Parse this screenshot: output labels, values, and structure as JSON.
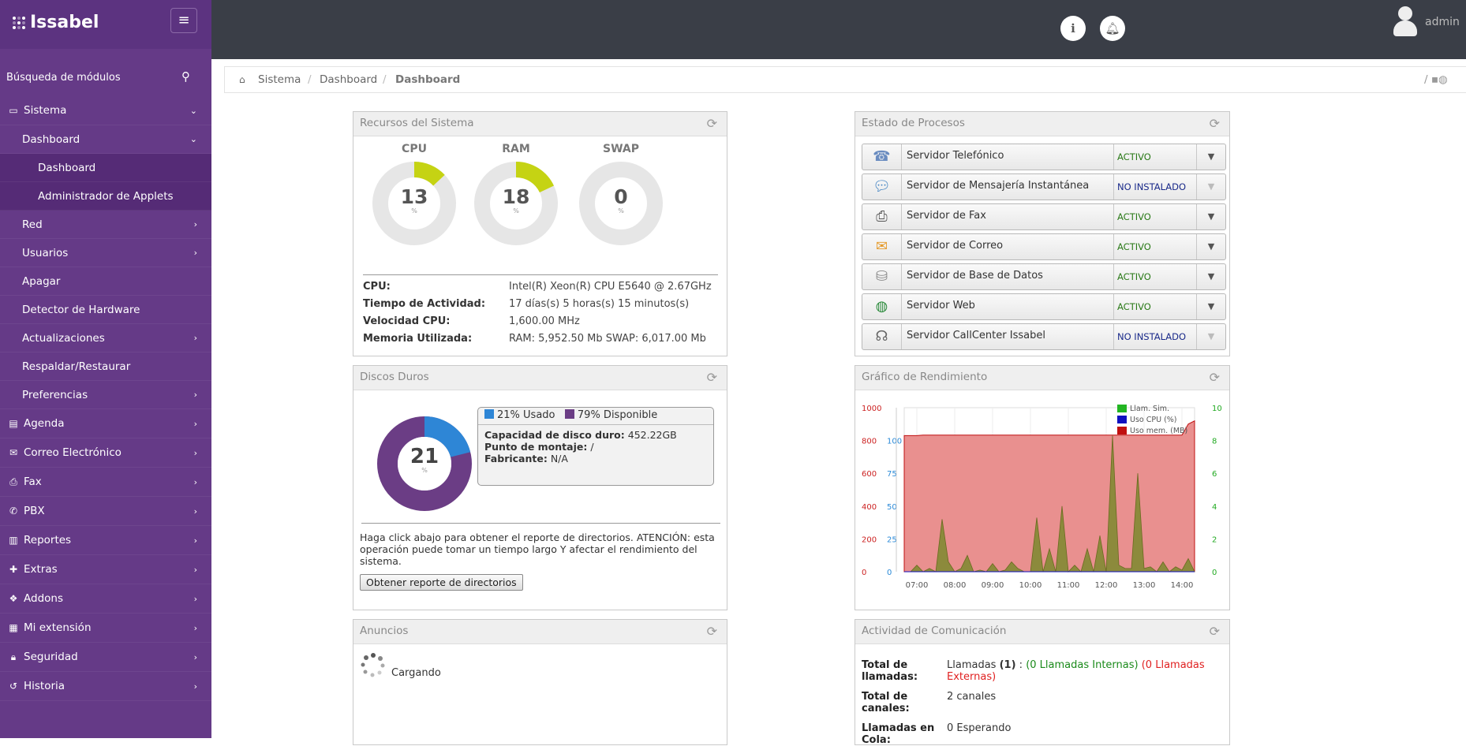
{
  "app": {
    "logo_text": "Issabel",
    "menu_toggle": "≡"
  },
  "sidebar": {
    "search_label": "Búsqueda de módulos",
    "items": [
      {
        "label": "Sistema",
        "level": 0,
        "icon": "laptop-icon",
        "chevron": "⌄"
      },
      {
        "label": "Dashboard",
        "level": 1,
        "chevron": "⌄"
      },
      {
        "label": "Dashboard",
        "level": 2
      },
      {
        "label": "Administrador de Applets",
        "level": 2
      },
      {
        "label": "Red",
        "level": 1,
        "chevron": "›"
      },
      {
        "label": "Usuarios",
        "level": 1,
        "chevron": "›"
      },
      {
        "label": "Apagar",
        "level": 1
      },
      {
        "label": "Detector de Hardware",
        "level": 1
      },
      {
        "label": "Actualizaciones",
        "level": 1,
        "chevron": "›"
      },
      {
        "label": "Respaldar/Restaurar",
        "level": 1
      },
      {
        "label": "Preferencias",
        "level": 1,
        "chevron": "›"
      },
      {
        "label": "Agenda",
        "level": 0,
        "icon": "book-icon",
        "chevron": "›"
      },
      {
        "label": "Correo Electrónico",
        "level": 0,
        "icon": "envelope-icon",
        "chevron": "›"
      },
      {
        "label": "Fax",
        "level": 0,
        "icon": "printer-icon",
        "chevron": "›"
      },
      {
        "label": "PBX",
        "level": 0,
        "icon": "phone-icon",
        "chevron": "›"
      },
      {
        "label": "Reportes",
        "level": 0,
        "icon": "bar-chart-icon",
        "chevron": "›"
      },
      {
        "label": "Extras",
        "level": 0,
        "icon": "plus-icon",
        "chevron": "›"
      },
      {
        "label": "Addons",
        "level": 0,
        "icon": "cubes-icon",
        "chevron": "›"
      },
      {
        "label": "Mi extensión",
        "level": 0,
        "icon": "building-icon",
        "chevron": "›"
      },
      {
        "label": "Seguridad",
        "level": 0,
        "icon": "lock-icon",
        "chevron": "›"
      },
      {
        "label": "Historia",
        "level": 0,
        "icon": "history-icon",
        "chevron": "›"
      }
    ]
  },
  "topbar": {
    "user": "admin"
  },
  "breadcrumb": [
    "Sistema",
    "Dashboard",
    "Dashboard"
  ],
  "breadcrumb_sep": "/",
  "resources": {
    "title": "Recursos del Sistema",
    "gauges": [
      {
        "label": "CPU",
        "value": 13,
        "unit": "%"
      },
      {
        "label": "RAM",
        "value": 18,
        "unit": "%"
      },
      {
        "label": "SWAP",
        "value": 0,
        "unit": "%"
      }
    ],
    "info": [
      {
        "k": "CPU:",
        "v": "Intel(R) Xeon(R) CPU E5640 @ 2.67GHz"
      },
      {
        "k": "Tiempo de Actividad:",
        "v": "17 días(s) 5 horas(s) 15 minutos(s)"
      },
      {
        "k": "Velocidad CPU:",
        "v": "1,600.00 MHz"
      },
      {
        "k": "Memoria Utilizada:",
        "v": "RAM: 5,952.50 Mb SWAP: 6,017.00 Mb"
      }
    ]
  },
  "processes": {
    "title": "Estado de Procesos",
    "rows": [
      {
        "name": "Servidor Telefónico",
        "status": "ACTIVO",
        "icon": "phone-icon"
      },
      {
        "name": "Servidor de Mensajería Instantánea",
        "status": "NO INSTALADO",
        "icon": "chat-icon"
      },
      {
        "name": "Servidor de Fax",
        "status": "ACTIVO",
        "icon": "fax-icon"
      },
      {
        "name": "Servidor de Correo",
        "status": "ACTIVO",
        "icon": "mail-icon"
      },
      {
        "name": "Servidor de Base de Datos",
        "status": "ACTIVO",
        "icon": "database-icon"
      },
      {
        "name": "Servidor Web",
        "status": "ACTIVO",
        "icon": "globe-icon"
      },
      {
        "name": "Servidor CallCenter Issabel",
        "status": "NO INSTALADO",
        "icon": "headset-icon"
      }
    ]
  },
  "disks": {
    "title": "Discos Duros",
    "used_pct": 21,
    "unit": "%",
    "legend_used": "21% Usado",
    "legend_free": "79% Disponible",
    "used_color": "#2e86d6",
    "free_color": "#6b3d85",
    "capacity_label": "Capacidad de disco duro:",
    "capacity": "452.22GB",
    "mount_label": "Punto de montaje:",
    "mount": "/",
    "maker_label": "Fabricante:",
    "maker": "N/A",
    "note": "Haga click abajo para obtener el reporte de directorios. ATENCIÓN: esta operación puede tomar un tiempo largo Y afectar el rendimiento del sistema.",
    "button": "Obtener reporte de directorios"
  },
  "performance": {
    "title": "Gráfico de Rendimiento"
  },
  "chart_data": {
    "type": "area",
    "x": [
      "06:40",
      "06:50",
      "07:00",
      "07:10",
      "07:20",
      "07:30",
      "07:40",
      "07:50",
      "08:00",
      "08:10",
      "08:20",
      "08:30",
      "08:40",
      "08:50",
      "09:00",
      "09:10",
      "09:20",
      "09:30",
      "09:40",
      "09:50",
      "10:00",
      "10:10",
      "10:20",
      "10:30",
      "10:40",
      "10:50",
      "11:00",
      "11:10",
      "11:20",
      "11:30",
      "11:40",
      "11:50",
      "12:00",
      "12:10",
      "12:20",
      "12:30",
      "12:40",
      "12:50",
      "13:00",
      "13:10",
      "13:20",
      "13:30",
      "13:40",
      "13:50",
      "14:00",
      "14:10",
      "14:20"
    ],
    "xticks": [
      "07:00",
      "08:00",
      "09:00",
      "10:00",
      "11:00",
      "12:00",
      "13:00",
      "14:00"
    ],
    "series": [
      {
        "name": "Llam. Sim.",
        "axis": "right",
        "color": "#22b522",
        "values": [
          0,
          0,
          0.4,
          0,
          0.2,
          0,
          3.2,
          0.6,
          0,
          0.2,
          1,
          0,
          0.1,
          0,
          0.5,
          0,
          0.1,
          0.6,
          0.2,
          0,
          0,
          3.3,
          0,
          1.4,
          0,
          4,
          0,
          0.4,
          0,
          1.4,
          0,
          2.2,
          0,
          8.3,
          0.4,
          0.2,
          0.2,
          6,
          0.2,
          0.3,
          0,
          0.6,
          0,
          0.3,
          0.1,
          0.8,
          0
        ]
      },
      {
        "name": "Uso CPU (%)",
        "axis": "mid",
        "color": "#1010c0",
        "values": [
          0,
          0,
          0,
          0,
          0,
          0,
          0,
          0,
          0,
          0,
          0,
          0,
          0,
          0,
          0,
          0,
          0,
          0,
          0,
          0,
          0,
          0,
          0,
          0,
          0,
          0,
          0,
          0,
          0,
          0,
          0,
          0,
          0,
          0,
          0,
          0,
          0,
          0,
          0,
          0,
          0,
          0,
          0,
          0,
          0,
          0,
          0
        ]
      },
      {
        "name": "Uso mem. (MB)",
        "axis": "left",
        "color": "#c01010",
        "values": [
          830,
          830,
          830,
          833,
          833,
          833,
          833,
          833,
          833,
          833,
          833,
          833,
          833,
          833,
          833,
          833,
          833,
          833,
          833,
          833,
          833,
          833,
          833,
          833,
          833,
          833,
          833,
          833,
          833,
          833,
          833,
          833,
          833,
          833,
          833,
          833,
          833,
          833,
          833,
          833,
          833,
          833,
          833,
          833,
          833,
          900,
          920
        ]
      }
    ],
    "y_left": {
      "ticks": [
        0,
        200,
        400,
        600,
        800,
        1000
      ],
      "range": [
        0,
        1000
      ],
      "color": "#cc2222"
    },
    "y_mid": {
      "ticks": [
        0,
        25,
        50,
        75,
        100
      ],
      "range": [
        0,
        125
      ],
      "color": "#2a8ad8"
    },
    "y_right": {
      "ticks": [
        0,
        2,
        4,
        6,
        8,
        10
      ],
      "range": [
        0,
        10
      ],
      "color": "#22aa22"
    },
    "legend_position": "top-right"
  },
  "announcements": {
    "title": "Anuncios",
    "loading": "Cargando"
  },
  "activity": {
    "title": "Actividad de Comunicación",
    "total_calls_label": "Total de llamadas:",
    "calls_prefix": "Llamadas",
    "calls_count": "(1)",
    "calls_sep": ":",
    "calls_internal": "(0 Llamadas Internas)",
    "calls_external": "(0 Llamadas Externas)",
    "channels_label": "Total de canales:",
    "channels": "2 canales",
    "queue_label": "Llamadas en Cola:",
    "queue": "0 Esperando"
  }
}
